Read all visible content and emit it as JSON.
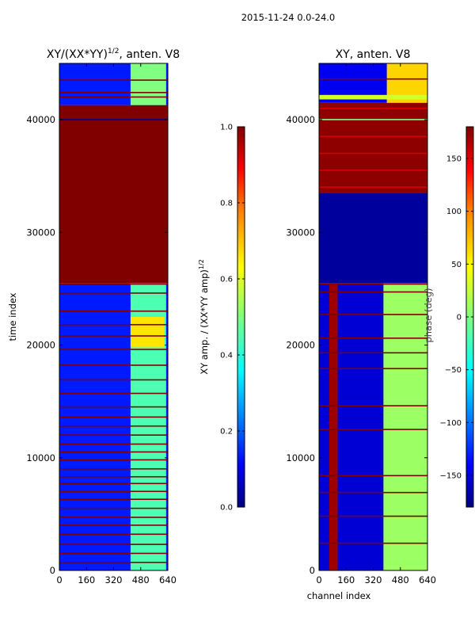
{
  "figure": {
    "suptitle": "2015-11-24 0.0-24.0",
    "colors": {
      "jet_dark_red": "#800000",
      "jet_red": "#ff0000",
      "jet_orange": "#ff8000",
      "jet_yellow": "#ffff00",
      "jet_cyan": "#00ffff",
      "jet_blue": "#0000ff",
      "jet_dark_blue": "#00007f"
    }
  },
  "chart_data": [
    {
      "type": "heatmap",
      "title": "XY/(XX*YY)",
      "title_sup": "1/2",
      "title_suffix": ", anten. V8",
      "ylabel": "time index",
      "xlabel": "",
      "xlim": [
        0,
        640
      ],
      "ylim": [
        0,
        45000
      ],
      "xticks": [
        0,
        160,
        320,
        480,
        640
      ],
      "yticks": [
        0,
        10000,
        20000,
        30000,
        40000
      ],
      "xtick_labels": [
        "0",
        "160",
        "320",
        "480",
        "640"
      ],
      "ytick_labels": [
        "0",
        "10000",
        "20000",
        "30000",
        "40000"
      ],
      "colorbar": {
        "label": "XY amp. / (XX*YY amp)",
        "label_sup": "1/2",
        "range": [
          0.0,
          1.0
        ],
        "ticks": [
          0.0,
          0.2,
          0.4,
          0.6,
          0.8,
          1.0
        ],
        "tick_labels": [
          "0.0",
          "0.2",
          "0.4",
          "0.6",
          "0.8",
          "1.0"
        ]
      },
      "regions": [
        {
          "t0": 0,
          "t1": 25500,
          "c0": 0,
          "c1": 640,
          "value": 0.15
        },
        {
          "t0": 0,
          "t1": 25500,
          "c0": 420,
          "c1": 630,
          "value": 0.45
        },
        {
          "t0": 19800,
          "t1": 22500,
          "c0": 420,
          "c1": 620,
          "value": 0.65
        },
        {
          "t0": 25500,
          "t1": 41300,
          "c0": 0,
          "c1": 640,
          "value": 1.0
        },
        {
          "t0": 41300,
          "t1": 45000,
          "c0": 0,
          "c1": 640,
          "value": 0.15
        },
        {
          "t0": 41300,
          "t1": 45000,
          "c0": 420,
          "c1": 630,
          "value": 0.5
        }
      ],
      "row_lines": [
        {
          "t": 700,
          "value": 1.0
        },
        {
          "t": 1500,
          "value": 1.0
        },
        {
          "t": 2300,
          "value": 1.0
        },
        {
          "t": 3200,
          "value": 1.0
        },
        {
          "t": 4000,
          "value": 1.0
        },
        {
          "t": 4700,
          "value": 1.0
        },
        {
          "t": 5500,
          "value": 1.0
        },
        {
          "t": 6300,
          "value": 1.0
        },
        {
          "t": 7000,
          "value": 1.0
        },
        {
          "t": 7700,
          "value": 1.0
        },
        {
          "t": 8300,
          "value": 1.0
        },
        {
          "t": 9000,
          "value": 1.0
        },
        {
          "t": 9800,
          "value": 1.0
        },
        {
          "t": 10500,
          "value": 1.0
        },
        {
          "t": 11200,
          "value": 1.0
        },
        {
          "t": 12000,
          "value": 1.0
        },
        {
          "t": 12800,
          "value": 1.0
        },
        {
          "t": 13600,
          "value": 1.0
        },
        {
          "t": 14500,
          "value": 1.0
        },
        {
          "t": 15700,
          "value": 1.0
        },
        {
          "t": 16900,
          "value": 1.0
        },
        {
          "t": 18200,
          "value": 1.0
        },
        {
          "t": 19600,
          "value": 1.0
        },
        {
          "t": 20800,
          "value": 1.0
        },
        {
          "t": 21800,
          "value": 1.0
        },
        {
          "t": 23000,
          "value": 1.0
        },
        {
          "t": 24600,
          "value": 1.0
        },
        {
          "t": 25400,
          "value": 1.0
        },
        {
          "t": 40000,
          "value": 0.0
        },
        {
          "t": 42000,
          "value": 1.0
        },
        {
          "t": 42400,
          "value": 1.0
        },
        {
          "t": 43500,
          "value": 1.0
        }
      ]
    },
    {
      "type": "heatmap",
      "title": "XY, anten. V8",
      "ylabel": "",
      "xlabel": "channel index",
      "side_label": "phase (deg)",
      "xlim": [
        0,
        640
      ],
      "ylim": [
        0,
        45000
      ],
      "xticks": [
        0,
        160,
        320,
        480,
        640
      ],
      "yticks": [
        0,
        10000,
        20000,
        30000,
        40000
      ],
      "xtick_labels": [
        "0",
        "160",
        "320",
        "480",
        "640"
      ],
      "ytick_labels": [
        "0",
        "10000",
        "20000",
        "30000",
        "40000"
      ],
      "colorbar": {
        "label": "",
        "range": [
          -180,
          180
        ],
        "ticks": [
          -150,
          -100,
          -50,
          0,
          50,
          100,
          150
        ],
        "tick_labels": [
          "−150",
          "−100",
          "−50",
          "0",
          "50",
          "100",
          "150"
        ]
      },
      "regions": [
        {
          "t0": 0,
          "t1": 25500,
          "c0": 0,
          "c1": 640,
          "value": -150
        },
        {
          "t0": 0,
          "t1": 25500,
          "c0": 60,
          "c1": 110,
          "value": 170
        },
        {
          "t0": 0,
          "t1": 25500,
          "c0": 380,
          "c1": 640,
          "value": 10
        },
        {
          "t0": 25500,
          "t1": 33500,
          "c0": 0,
          "c1": 640,
          "value": -170
        },
        {
          "t0": 33500,
          "t1": 41500,
          "c0": 0,
          "c1": 640,
          "value": 175
        },
        {
          "t0": 41500,
          "t1": 45000,
          "c0": 0,
          "c1": 640,
          "value": -140
        },
        {
          "t0": 41500,
          "t1": 45000,
          "c0": 400,
          "c1": 640,
          "value": 60
        },
        {
          "t0": 41800,
          "t1": 42200,
          "c0": 0,
          "c1": 640,
          "value": 30
        }
      ],
      "row_lines": [
        {
          "t": 2400,
          "value": 180
        },
        {
          "t": 4800,
          "value": 180
        },
        {
          "t": 6900,
          "value": 180
        },
        {
          "t": 8400,
          "value": 180
        },
        {
          "t": 12500,
          "value": 180
        },
        {
          "t": 14600,
          "value": 180
        },
        {
          "t": 17900,
          "value": 180
        },
        {
          "t": 19300,
          "value": 180
        },
        {
          "t": 20600,
          "value": 180
        },
        {
          "t": 22700,
          "value": 180
        },
        {
          "t": 24700,
          "value": 180
        },
        {
          "t": 25400,
          "value": 180
        },
        {
          "t": 34000,
          "value": 150
        },
        {
          "t": 35500,
          "value": 150
        },
        {
          "t": 37000,
          "value": 150
        },
        {
          "t": 38500,
          "value": 150
        },
        {
          "t": 40000,
          "value": 0
        },
        {
          "t": 41000,
          "value": 150
        },
        {
          "t": 43600,
          "value": 180
        }
      ]
    }
  ]
}
